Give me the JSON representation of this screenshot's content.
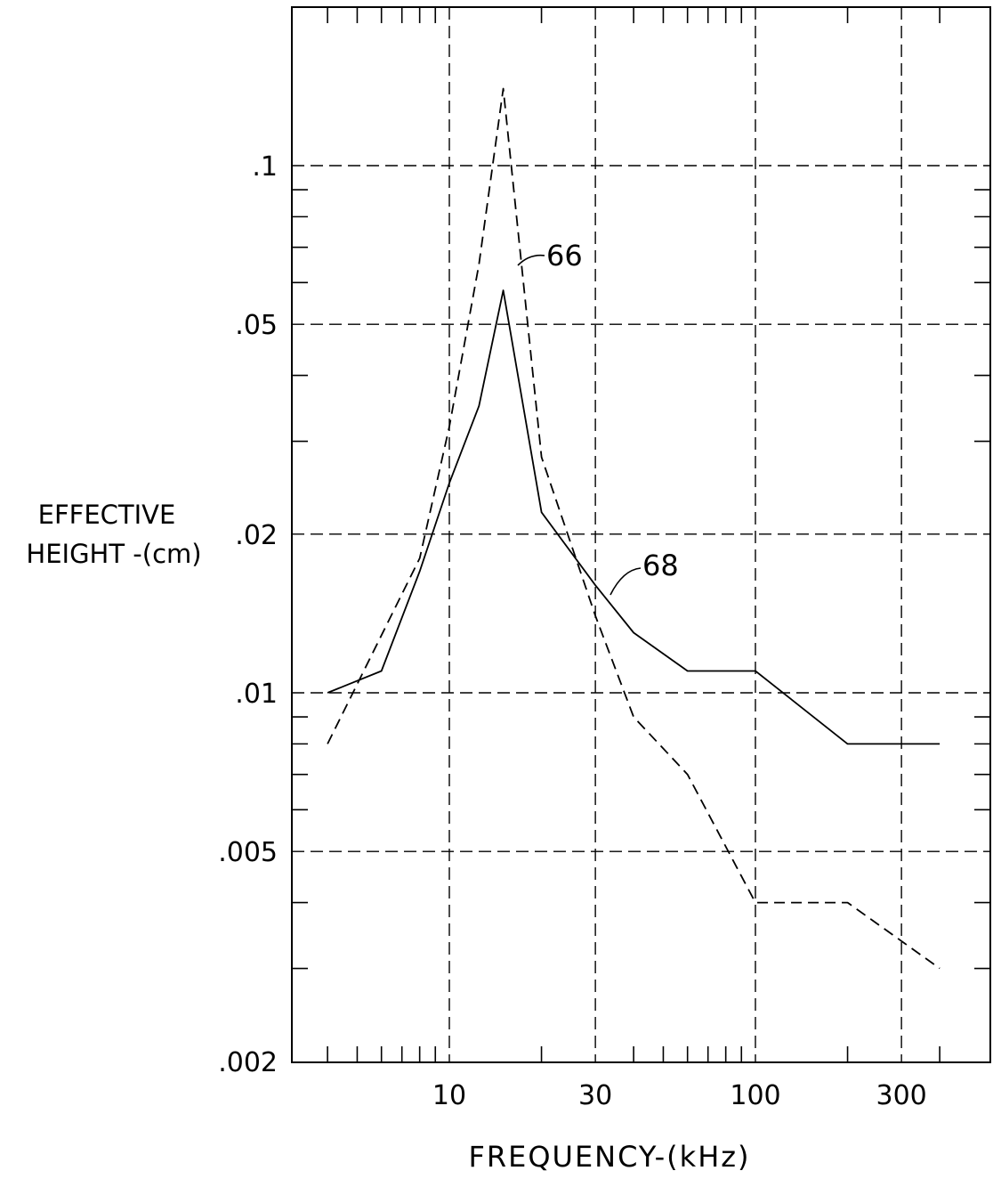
{
  "chart_data": {
    "type": "line",
    "title": "",
    "xlabel": "FREQUENCY-(kHz)",
    "ylabel_lines": [
      "EFFECTIVE",
      "HEIGHT -(cm)"
    ],
    "x_scale": "log",
    "y_scale": "log",
    "xlim": [
      3,
      500
    ],
    "ylim": [
      0.002,
      0.2
    ],
    "x_ticks": [
      {
        "value": 10,
        "label": "10"
      },
      {
        "value": 30,
        "label": "30"
      },
      {
        "value": 100,
        "label": "100"
      },
      {
        "value": 300,
        "label": "300"
      }
    ],
    "y_ticks": [
      {
        "value": 0.1,
        "label": ".1"
      },
      {
        "value": 0.05,
        "label": ".05"
      },
      {
        "value": 0.02,
        "label": ".02"
      },
      {
        "value": 0.01,
        "label": ".01"
      },
      {
        "value": 0.005,
        "label": ".005"
      },
      {
        "value": 0.002,
        "label": ".002"
      }
    ],
    "x_minor_ticks": [
      4,
      5,
      6,
      7,
      8,
      9,
      20,
      40,
      50,
      60,
      70,
      80,
      90,
      200,
      400
    ],
    "y_minor_ticks": [
      0.2,
      0.09,
      0.08,
      0.07,
      0.06,
      0.04,
      0.03,
      0.009,
      0.008,
      0.007,
      0.006,
      0.004,
      0.003
    ],
    "grid": true,
    "series": [
      {
        "name": "66",
        "line_style": "dashed",
        "x": [
          4,
          8,
          10,
          12.5,
          15,
          20,
          30,
          40,
          60,
          100,
          200,
          400
        ],
        "y": [
          0.008,
          0.018,
          0.032,
          0.065,
          0.14,
          0.028,
          0.014,
          0.009,
          0.007,
          0.004,
          0.004,
          0.003
        ]
      },
      {
        "name": "68",
        "line_style": "solid",
        "x": [
          4,
          6,
          8,
          10,
          12.5,
          15,
          20,
          30,
          40,
          60,
          100,
          200,
          400
        ],
        "y": [
          0.01,
          0.011,
          0.017,
          0.025,
          0.035,
          0.058,
          0.022,
          0.016,
          0.013,
          0.011,
          0.011,
          0.008,
          0.008
        ]
      }
    ]
  }
}
